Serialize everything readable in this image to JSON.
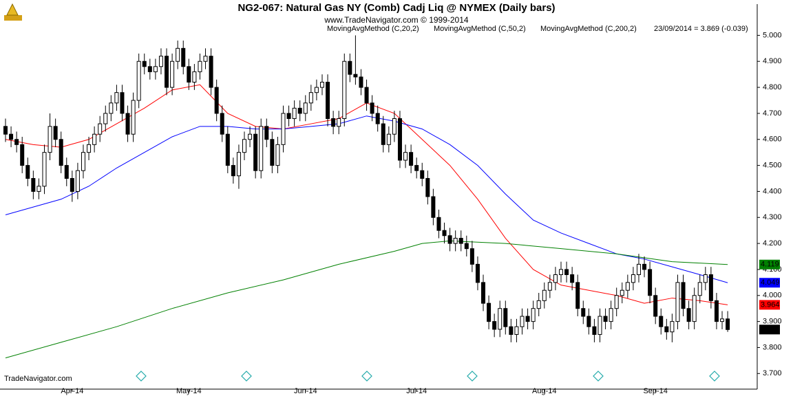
{
  "chart_data": {
    "type": "candlestick",
    "title": "NG2-067:  Natural Gas NY (Comb) Cadj Liq @ NYMEX  (Daily bars)",
    "subtitle": "www.TradeNavigator.com © 1999-2014",
    "annotation": "23/09/2014 = 3.869 (-0.039)",
    "footer": "TradeNavigator.com",
    "categories": [
      null,
      null,
      null,
      null,
      null,
      null,
      null,
      null,
      null,
      null,
      null,
      null,
      "Apr-14",
      null,
      null,
      null,
      null,
      null,
      null,
      null,
      null,
      null,
      null,
      null,
      null,
      null,
      null,
      null,
      null,
      null,
      null,
      null,
      null,
      "May-14",
      null,
      null,
      null,
      null,
      null,
      null,
      null,
      null,
      null,
      null,
      null,
      null,
      null,
      null,
      null,
      null,
      null,
      null,
      null,
      null,
      "Jun-14",
      null,
      null,
      null,
      null,
      null,
      null,
      null,
      null,
      null,
      null,
      null,
      null,
      null,
      null,
      null,
      null,
      null,
      null,
      null,
      "Jul-14",
      null,
      null,
      null,
      null,
      null,
      null,
      null,
      null,
      null,
      null,
      null,
      null,
      null,
      null,
      null,
      null,
      null,
      null,
      null,
      null,
      null,
      null,
      "Aug-14",
      null,
      null,
      null,
      null,
      null,
      null,
      null,
      null,
      null,
      null,
      null,
      null,
      null,
      null,
      null,
      null,
      null,
      null,
      null,
      "Sep-14",
      null,
      null,
      null,
      null,
      null,
      null,
      null,
      null,
      null,
      null,
      null,
      null,
      null
    ],
    "open": [
      4.65,
      4.62,
      4.6,
      4.58,
      4.5,
      4.45,
      4.4,
      4.42,
      4.55,
      4.65,
      4.6,
      4.5,
      4.45,
      4.4,
      4.48,
      4.55,
      4.58,
      4.62,
      4.66,
      4.7,
      4.74,
      4.78,
      4.7,
      4.62,
      4.75,
      4.9,
      4.88,
      4.86,
      4.88,
      4.92,
      4.8,
      4.9,
      4.95,
      4.88,
      4.82,
      4.86,
      4.9,
      4.92,
      4.8,
      4.7,
      4.62,
      4.5,
      4.46,
      4.55,
      4.6,
      4.62,
      4.48,
      4.65,
      4.6,
      4.5,
      4.58,
      4.7,
      4.68,
      4.72,
      4.7,
      4.74,
      4.78,
      4.8,
      4.82,
      4.68,
      4.65,
      4.68,
      4.9,
      4.85,
      4.84,
      4.8,
      4.74,
      4.7,
      4.66,
      4.58,
      4.62,
      4.68,
      4.52,
      4.55,
      4.5,
      4.48,
      4.45,
      4.38,
      4.3,
      4.25,
      4.23,
      4.2,
      4.22,
      4.2,
      4.18,
      4.12,
      4.05,
      3.97,
      3.9,
      3.87,
      3.95,
      3.88,
      3.85,
      3.88,
      3.92,
      3.9,
      3.95,
      3.98,
      4.02,
      4.05,
      4.08,
      4.1,
      4.08,
      4.05,
      3.95,
      3.92,
      3.88,
      3.85,
      3.92,
      3.9,
      3.95,
      4.0,
      4.02,
      4.05,
      4.08,
      4.12,
      4.1,
      4.0,
      3.92,
      3.88,
      3.86,
      3.9,
      4.05,
      3.95,
      3.9,
      4.0,
      4.05,
      4.08,
      3.98,
      3.9,
      3.91
    ],
    "high": [
      4.68,
      4.65,
      4.63,
      4.61,
      4.53,
      4.48,
      4.45,
      4.58,
      4.7,
      4.68,
      4.63,
      4.53,
      4.48,
      4.51,
      4.58,
      4.61,
      4.65,
      4.69,
      4.73,
      4.77,
      4.81,
      4.81,
      4.73,
      4.78,
      4.93,
      4.93,
      4.91,
      4.91,
      4.95,
      4.95,
      4.93,
      4.98,
      4.98,
      4.91,
      4.89,
      4.93,
      4.95,
      4.95,
      4.83,
      4.73,
      4.65,
      4.53,
      4.58,
      4.63,
      4.65,
      4.65,
      4.68,
      4.68,
      4.63,
      4.61,
      4.73,
      4.73,
      4.75,
      4.75,
      4.77,
      4.81,
      4.83,
      4.85,
      4.85,
      4.71,
      4.71,
      4.93,
      4.93,
      5.0,
      4.87,
      4.83,
      4.77,
      4.73,
      4.69,
      4.65,
      4.71,
      4.71,
      4.58,
      4.58,
      4.53,
      4.51,
      4.48,
      4.41,
      4.33,
      4.28,
      4.26,
      4.25,
      4.25,
      4.23,
      4.21,
      4.15,
      4.08,
      4.0,
      3.93,
      3.98,
      3.98,
      3.91,
      3.91,
      3.95,
      3.95,
      3.98,
      4.01,
      4.05,
      4.08,
      4.11,
      4.13,
      4.13,
      4.11,
      4.08,
      3.98,
      3.95,
      3.91,
      3.95,
      3.95,
      3.98,
      4.03,
      4.05,
      4.08,
      4.11,
      4.16,
      4.15,
      4.13,
      4.03,
      3.95,
      3.91,
      3.93,
      4.08,
      4.08,
      3.98,
      4.03,
      4.08,
      4.11,
      4.11,
      4.01,
      3.94,
      3.94
    ],
    "low": [
      4.59,
      4.57,
      4.55,
      4.47,
      4.42,
      4.37,
      4.37,
      4.39,
      4.52,
      4.57,
      4.47,
      4.42,
      4.36,
      4.37,
      4.45,
      4.52,
      4.55,
      4.59,
      4.63,
      4.67,
      4.71,
      4.67,
      4.59,
      4.59,
      4.72,
      4.85,
      4.83,
      4.83,
      4.85,
      4.77,
      4.77,
      4.87,
      4.85,
      4.79,
      4.79,
      4.83,
      4.87,
      4.77,
      4.67,
      4.59,
      4.47,
      4.43,
      4.41,
      4.52,
      4.57,
      4.45,
      4.45,
      4.57,
      4.47,
      4.47,
      4.55,
      4.65,
      4.65,
      4.67,
      4.67,
      4.71,
      4.75,
      4.77,
      4.65,
      4.62,
      4.62,
      4.65,
      4.82,
      4.81,
      4.77,
      4.71,
      4.67,
      4.63,
      4.55,
      4.55,
      4.59,
      4.49,
      4.49,
      4.47,
      4.45,
      4.42,
      4.35,
      4.27,
      4.22,
      4.2,
      4.17,
      4.17,
      4.17,
      4.15,
      4.09,
      4.02,
      3.94,
      3.87,
      3.84,
      3.84,
      3.85,
      3.82,
      3.82,
      3.85,
      3.87,
      3.87,
      3.92,
      3.95,
      3.99,
      4.02,
      4.05,
      4.05,
      4.02,
      3.92,
      3.89,
      3.85,
      3.82,
      3.82,
      3.87,
      3.87,
      3.92,
      3.97,
      3.99,
      4.02,
      4.05,
      4.07,
      3.97,
      3.89,
      3.85,
      3.83,
      3.82,
      3.87,
      3.92,
      3.87,
      3.87,
      3.97,
      4.02,
      3.95,
      3.87,
      3.87,
      3.86
    ],
    "close": [
      4.62,
      4.6,
      4.58,
      4.5,
      4.45,
      4.4,
      4.42,
      4.55,
      4.65,
      4.6,
      4.5,
      4.45,
      4.4,
      4.48,
      4.55,
      4.58,
      4.62,
      4.66,
      4.7,
      4.74,
      4.78,
      4.7,
      4.62,
      4.75,
      4.9,
      4.88,
      4.86,
      4.88,
      4.92,
      4.8,
      4.9,
      4.95,
      4.88,
      4.82,
      4.86,
      4.9,
      4.92,
      4.8,
      4.7,
      4.62,
      4.5,
      4.46,
      4.55,
      4.6,
      4.62,
      4.48,
      4.65,
      4.6,
      4.5,
      4.58,
      4.7,
      4.68,
      4.72,
      4.7,
      4.74,
      4.78,
      4.8,
      4.82,
      4.68,
      4.65,
      4.68,
      4.9,
      4.85,
      4.84,
      4.8,
      4.74,
      4.7,
      4.66,
      4.58,
      4.62,
      4.68,
      4.52,
      4.55,
      4.5,
      4.48,
      4.45,
      4.38,
      4.3,
      4.25,
      4.23,
      4.2,
      4.22,
      4.2,
      4.18,
      4.12,
      4.05,
      3.97,
      3.9,
      3.87,
      3.95,
      3.88,
      3.85,
      3.88,
      3.92,
      3.9,
      3.95,
      3.98,
      4.02,
      4.05,
      4.08,
      4.1,
      4.08,
      4.05,
      3.95,
      3.92,
      3.88,
      3.85,
      3.92,
      3.9,
      3.95,
      4.0,
      4.02,
      4.05,
      4.08,
      4.12,
      4.1,
      4.0,
      3.92,
      3.88,
      3.86,
      3.9,
      4.05,
      3.95,
      3.9,
      4.0,
      4.05,
      4.08,
      3.98,
      3.9,
      3.91,
      3.869
    ],
    "series": [
      {
        "name": "MovingAvgMethod (C,20,2)",
        "color": "#ff0000",
        "x": [
          0,
          5,
          10,
          15,
          20,
          25,
          30,
          35,
          40,
          45,
          50,
          55,
          60,
          65,
          70,
          75,
          80,
          85,
          90,
          95,
          100,
          105,
          110,
          115,
          120,
          125,
          130
        ],
        "values": [
          4.6,
          4.58,
          4.57,
          4.6,
          4.66,
          4.72,
          4.79,
          4.81,
          4.7,
          4.65,
          4.64,
          4.66,
          4.68,
          4.74,
          4.7,
          4.6,
          4.5,
          4.37,
          4.22,
          4.1,
          4.04,
          4.02,
          4.0,
          3.97,
          3.99,
          3.98,
          3.964
        ]
      },
      {
        "name": "MovingAvgMethod (C,50,2)",
        "color": "#0000ff",
        "x": [
          0,
          5,
          10,
          15,
          20,
          25,
          30,
          35,
          40,
          45,
          50,
          55,
          60,
          65,
          70,
          75,
          80,
          85,
          90,
          95,
          100,
          105,
          110,
          115,
          120,
          125,
          130
        ],
        "values": [
          4.31,
          4.34,
          4.37,
          4.42,
          4.49,
          4.55,
          4.61,
          4.65,
          4.65,
          4.64,
          4.64,
          4.65,
          4.66,
          4.69,
          4.67,
          4.64,
          4.58,
          4.5,
          4.39,
          4.29,
          4.24,
          4.2,
          4.16,
          4.14,
          4.11,
          4.08,
          4.049
        ]
      },
      {
        "name": "MovingAvgMethod (C,200,2)",
        "color": "#008000",
        "x": [
          0,
          10,
          20,
          30,
          40,
          50,
          60,
          70,
          75,
          80,
          90,
          100,
          110,
          120,
          130
        ],
        "values": [
          3.76,
          3.82,
          3.88,
          3.95,
          4.01,
          4.06,
          4.12,
          4.17,
          4.2,
          4.21,
          4.2,
          4.18,
          4.16,
          4.13,
          4.119
        ]
      }
    ],
    "ylim": [
      3.64,
      5.12
    ],
    "yticks": [
      {
        "value": 3.7,
        "label": "3.700"
      },
      {
        "value": 3.8,
        "label": "3.800"
      },
      {
        "value": 3.9,
        "label": "3.900"
      },
      {
        "value": 4.0,
        "label": "4.000"
      },
      {
        "value": 4.1,
        "label": "4.100"
      },
      {
        "value": 4.2,
        "label": "4.200"
      },
      {
        "value": 4.3,
        "label": "4.300"
      },
      {
        "value": 4.4,
        "label": "4.400"
      },
      {
        "value": 4.5,
        "label": "4.500"
      },
      {
        "value": 4.6,
        "label": "4.600"
      },
      {
        "value": 4.7,
        "label": "4.700"
      },
      {
        "value": 4.8,
        "label": "4.800"
      },
      {
        "value": 4.9,
        "label": "4.900"
      },
      {
        "value": 5.0,
        "label": "5.000"
      }
    ]
  }
}
